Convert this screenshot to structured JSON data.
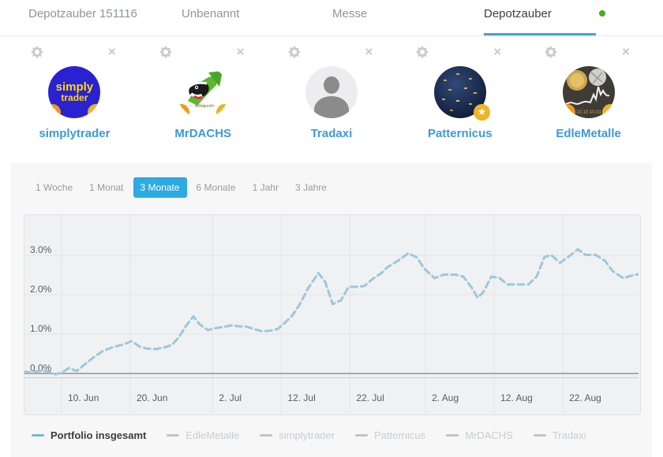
{
  "tabs": {
    "items": [
      {
        "label": "Depotzauber 151116",
        "active": false
      },
      {
        "label": "Unbenannt",
        "active": false
      },
      {
        "label": "Messe",
        "active": false
      },
      {
        "label": "Depotzauber",
        "active": true
      }
    ],
    "status_dot_color": "#41ad27"
  },
  "traders": {
    "card_icons": [
      "gear-icon",
      "close-icon"
    ],
    "items": [
      {
        "name": "simplytrader",
        "avatar": "simply",
        "avatar_lines": [
          "simply",
          "trader"
        ],
        "badges": [
          "R",
          "star"
        ]
      },
      {
        "name": "MrDACHS",
        "avatar": "badger",
        "badges": [
          "R",
          "star"
        ]
      },
      {
        "name": "Tradaxi",
        "avatar": "silhouette",
        "badges": []
      },
      {
        "name": "Patternicus",
        "avatar": "pattern",
        "badges": [
          "star"
        ]
      },
      {
        "name": "EdleMetalle",
        "avatar": "metal",
        "badges": [
          "R",
          "star"
        ]
      }
    ]
  },
  "time_ranges": {
    "options": [
      "1 Woche",
      "1 Monat",
      "3 Monate",
      "6 Monate",
      "1 Jahr",
      "3 Jahre"
    ],
    "selected": "3 Monate",
    "selected_color": "#2caae1"
  },
  "chart_data": {
    "type": "line",
    "title": "",
    "grid": true,
    "legend_position": "bottom",
    "x_axis": {
      "unit": "date (day offset, 0 = ca. 5. Jun)",
      "tick_labels": [
        "10. Jun",
        "20. Jun",
        "2. Jul",
        "12. Jul",
        "22. Jul",
        "2. Aug",
        "12. Aug",
        "22. Aug"
      ],
      "tick_days": [
        5,
        15,
        27,
        37,
        47,
        58,
        68,
        78
      ],
      "range_days": [
        -0.5,
        89.5
      ]
    },
    "y_axis": {
      "tick_labels": [
        "3.0%",
        "2.0%",
        "1.0%",
        "0.0%"
      ],
      "tick_values": [
        3,
        2,
        1,
        0
      ],
      "range": [
        -0.1,
        4.0
      ],
      "unit": "percent"
    },
    "series": [
      {
        "name": "Portfolio insgesamt",
        "style": "dashed",
        "color": "#9cc7de",
        "points": [
          [
            -0.5,
            0.05
          ],
          [
            0.4,
            0.03
          ],
          [
            1.3,
            0.05
          ],
          [
            2.2,
            0.07
          ],
          [
            3.2,
            0.04
          ],
          [
            4.1,
            -0.02
          ],
          [
            5.0,
            0.02
          ],
          [
            6.1,
            0.14
          ],
          [
            7.2,
            0.06
          ],
          [
            8.3,
            0.22
          ],
          [
            9.6,
            0.4
          ],
          [
            11.0,
            0.57
          ],
          [
            12.5,
            0.67
          ],
          [
            13.9,
            0.73
          ],
          [
            15.2,
            0.82
          ],
          [
            16.4,
            0.68
          ],
          [
            17.5,
            0.63
          ],
          [
            18.8,
            0.62
          ],
          [
            20.2,
            0.67
          ],
          [
            21.1,
            0.73
          ],
          [
            22.1,
            0.92
          ],
          [
            23.0,
            1.18
          ],
          [
            24.2,
            1.45
          ],
          [
            25.1,
            1.25
          ],
          [
            26.3,
            1.1
          ],
          [
            27.4,
            1.15
          ],
          [
            28.6,
            1.18
          ],
          [
            29.7,
            1.22
          ],
          [
            30.7,
            1.2
          ],
          [
            31.9,
            1.19
          ],
          [
            33.0,
            1.13
          ],
          [
            34.2,
            1.07
          ],
          [
            35.5,
            1.09
          ],
          [
            36.5,
            1.13
          ],
          [
            37.4,
            1.27
          ],
          [
            38.6,
            1.47
          ],
          [
            39.7,
            1.76
          ],
          [
            40.9,
            2.16
          ],
          [
            42.4,
            2.55
          ],
          [
            43.4,
            2.32
          ],
          [
            44.5,
            1.76
          ],
          [
            45.7,
            1.86
          ],
          [
            46.8,
            2.2
          ],
          [
            48.0,
            2.2
          ],
          [
            49.1,
            2.22
          ],
          [
            50.3,
            2.4
          ],
          [
            51.6,
            2.55
          ],
          [
            52.4,
            2.69
          ],
          [
            53.9,
            2.85
          ],
          [
            55.5,
            3.05
          ],
          [
            56.7,
            2.95
          ],
          [
            57.9,
            2.65
          ],
          [
            59.3,
            2.42
          ],
          [
            60.7,
            2.51
          ],
          [
            62.4,
            2.51
          ],
          [
            63.5,
            2.46
          ],
          [
            64.8,
            2.16
          ],
          [
            65.6,
            1.92
          ],
          [
            66.4,
            2.06
          ],
          [
            67.6,
            2.46
          ],
          [
            68.8,
            2.42
          ],
          [
            69.9,
            2.26
          ],
          [
            71.6,
            2.26
          ],
          [
            73.0,
            2.26
          ],
          [
            74.2,
            2.46
          ],
          [
            75.3,
            2.95
          ],
          [
            76.3,
            3.01
          ],
          [
            77.6,
            2.81
          ],
          [
            79.0,
            2.99
          ],
          [
            80.2,
            3.15
          ],
          [
            81.3,
            3.01
          ],
          [
            82.8,
            3.01
          ],
          [
            84.2,
            2.85
          ],
          [
            85.3,
            2.59
          ],
          [
            86.8,
            2.42
          ],
          [
            88.3,
            2.5
          ],
          [
            89.1,
            2.52
          ]
        ]
      }
    ]
  },
  "legend": {
    "items": [
      {
        "label": "Portfolio insgesamt",
        "color": "#79b6d9",
        "active": true
      },
      {
        "label": "EdleMetalle",
        "color": "#c3c3c3",
        "active": false
      },
      {
        "label": "simplytrader",
        "color": "#c3c3c3",
        "active": false
      },
      {
        "label": "Patternicus",
        "color": "#c3c3c3",
        "active": false
      },
      {
        "label": "MrDACHS",
        "color": "#c3c3c3",
        "active": false
      },
      {
        "label": "Tradaxi",
        "color": "#c3c3c3",
        "active": false
      }
    ]
  },
  "colors": {
    "accent_blue": "#2caae1",
    "link_blue": "#3b9ad9",
    "tab_underline": "#46a2d2",
    "line_blue": "#9cc7de",
    "status_green": "#41ad27"
  }
}
